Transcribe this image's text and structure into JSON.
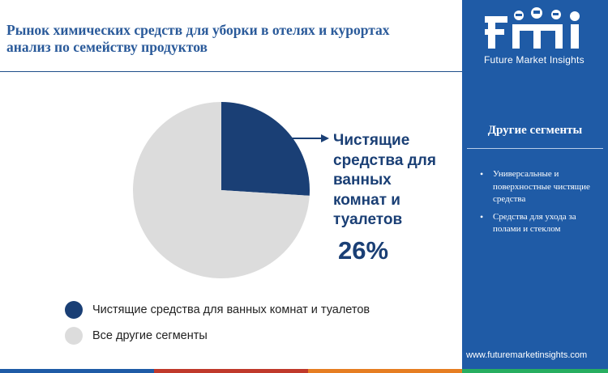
{
  "header": {
    "title_line1": "Рынок химических средств для уборки в отелях и курортах",
    "title_line2": "анализ по семейству продуктов"
  },
  "chart_data": {
    "type": "pie",
    "slices": [
      {
        "label": "Чистящие средства для ванных комнат и туалетов",
        "value": 26,
        "color": "#1a3f75"
      },
      {
        "label": "Все другие сегменты",
        "value": 74,
        "color": "#dcdcdc"
      }
    ],
    "callout": {
      "label_lines": [
        "Чистящие",
        "средства для",
        "ванных",
        "комнат и",
        "туалетов"
      ],
      "value": "26%"
    },
    "legend": [
      "Чистящие средства для ванных комнат и туалетов",
      "Все другие сегменты"
    ]
  },
  "sidebar": {
    "logo_text": "Future Market Insights",
    "heading": "Другие сегменты",
    "items": [
      "Универсальные и поверхностные чистящие средства",
      "Средства для ухода за полами и стеклом"
    ],
    "website": "www.futuremarketinsights.com"
  },
  "colors": {
    "accent": "#1a3f75",
    "sidebar": "#1f5ba6",
    "bottom_bar": [
      "#1f5ba6",
      "#c0392b",
      "#e67e22",
      "#27ae60"
    ]
  }
}
